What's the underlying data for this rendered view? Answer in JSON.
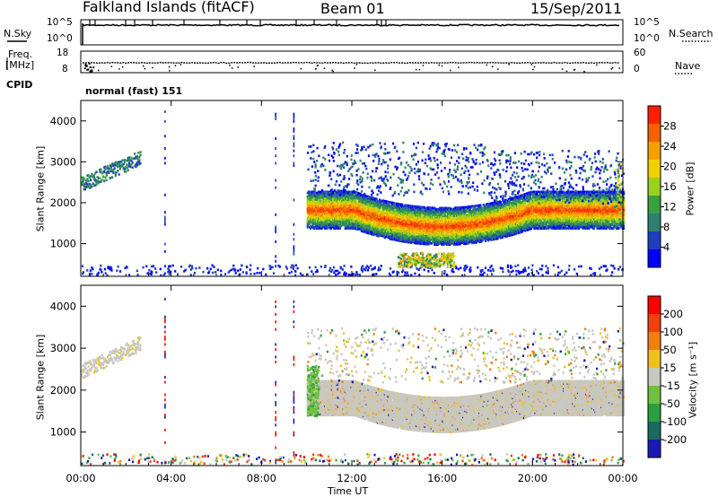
{
  "header": {
    "station": "Falkland Islands (fitACF)",
    "beam": "Beam 01",
    "date": "15/Sep/2011"
  },
  "top_panels": {
    "nsky_label": "N.Sky",
    "nsearch_label": "N.Search",
    "freq_label_line1": "Freq.",
    "freq_label_line2": "[MHz]",
    "nave_label": "Nave",
    "cpid_label": "CPID",
    "cpid_text": "normal (fast) 151",
    "noise_ticks_left": [
      "10^5",
      "10^0"
    ],
    "noise_ticks_right": [
      "10^5",
      "10^0"
    ],
    "freq_ticks_left": [
      "18",
      "8"
    ],
    "nave_ticks_right": [
      "60",
      "0"
    ]
  },
  "chart_data": [
    {
      "type": "heatmap",
      "name_id": "power",
      "ylabel": "Slant Range [km]",
      "xlabel": "",
      "yticks": [
        1000,
        2000,
        3000,
        4000
      ],
      "ylim": [
        200,
        4500
      ],
      "xlim": [
        0,
        24
      ],
      "colorbar": {
        "label": "Power [dB]",
        "ticks": [
          4,
          8,
          12,
          16,
          20,
          24,
          28
        ],
        "range": [
          0,
          32
        ],
        "colors": [
          "#0000ff",
          "#1f3fbf",
          "#2f7f6f",
          "#3aa040",
          "#9ad020",
          "#f0d000",
          "#f5a000",
          "#f56000",
          "#ff2000"
        ]
      }
    },
    {
      "type": "heatmap",
      "name_id": "velocity",
      "ylabel": "Slant Range [km]",
      "xlabel": "Time UT",
      "yticks": [
        1000,
        2000,
        3000,
        4000
      ],
      "ylim": [
        200,
        4500
      ],
      "xlim": [
        0,
        24
      ],
      "xticks": [
        "00:00",
        "04:00",
        "08:00",
        "12:00",
        "16:00",
        "20:00",
        "00:00"
      ],
      "colorbar": {
        "label": "Velocity [m s⁻¹]",
        "ticks": [
          "200",
          "100",
          "50",
          "15",
          "-15",
          "-50",
          "-100",
          "-200"
        ],
        "colors": [
          "#1a1ab0",
          "#1a6a60",
          "#2aa040",
          "#70c040",
          "#c8c8c0",
          "#f0c020",
          "#f08010",
          "#f04010",
          "#ff0000"
        ]
      }
    }
  ]
}
